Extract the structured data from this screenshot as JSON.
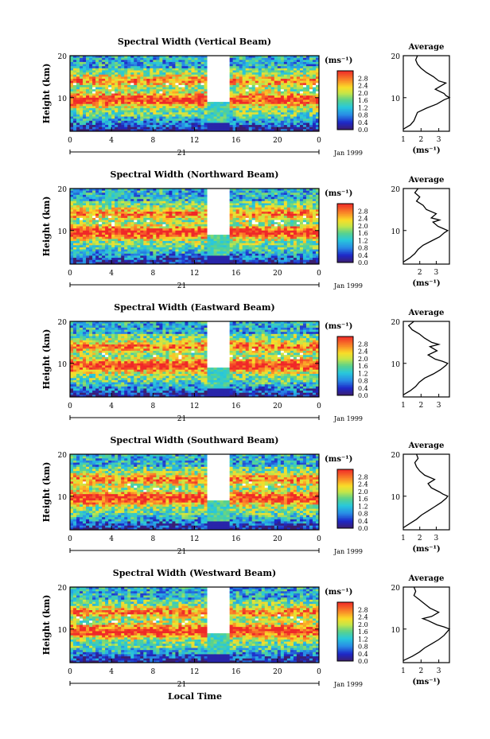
{
  "figure": {
    "xlabel_bottom": "Local Time",
    "date_day": "21",
    "date_label": "Jan 1999"
  },
  "chart_data": [
    {
      "type": "heatmap",
      "title": "Spectral Width (Vertical Beam)",
      "ylabel": "Height (km)",
      "x_ticks": [
        "0",
        "4",
        "8",
        "12",
        "16",
        "20",
        "0"
      ],
      "y_ticks": [
        "10",
        "20"
      ],
      "xlim": [
        0,
        24
      ],
      "ylim": [
        2,
        20
      ],
      "colorbar": {
        "unit": "(ms⁻¹)",
        "ticks": [
          "2.8",
          "2.4",
          "2.0",
          "1.6",
          "1.2",
          "0.8",
          "0.4",
          "0.0"
        ],
        "range": [
          0.0,
          3.2
        ]
      },
      "average_profile": {
        "title": "Average",
        "xlabel": "(ms⁻¹)",
        "x_ticks": [
          "1",
          "2",
          "3"
        ],
        "xlim": [
          1,
          3.6
        ],
        "ylim": [
          2,
          20
        ],
        "height_km": [
          2.5,
          3.5,
          4.5,
          5.5,
          6.5,
          7.5,
          8.5,
          9.5,
          10.0,
          10.5,
          11.0,
          12.0,
          13.0,
          13.5,
          14.0,
          15.0,
          16.0,
          17.0,
          18.0,
          19.0,
          20.0
        ],
        "width": [
          1.0,
          1.4,
          1.6,
          1.7,
          1.8,
          2.3,
          2.9,
          3.3,
          3.6,
          3.4,
          3.3,
          2.8,
          3.2,
          3.4,
          3.0,
          2.7,
          2.3,
          2.0,
          1.8,
          1.7,
          1.8
        ]
      }
    },
    {
      "type": "heatmap",
      "title": "Spectral Width (Northward Beam)",
      "ylabel": "Height (km)",
      "x_ticks": [
        "0",
        "4",
        "8",
        "12",
        "16",
        "20",
        "0"
      ],
      "y_ticks": [
        "10",
        "20"
      ],
      "xlim": [
        0,
        24
      ],
      "ylim": [
        2,
        20
      ],
      "colorbar": {
        "unit": "(ms⁻¹)",
        "ticks": [
          "2.8",
          "2.4",
          "2.0",
          "1.6",
          "1.2",
          "0.8",
          "0.4",
          "0.0"
        ],
        "range": [
          0.0,
          3.2
        ]
      },
      "average_profile": {
        "title": "Average",
        "xlabel": "(ms⁻¹)",
        "x_ticks": [
          "2",
          "3"
        ],
        "xlim": [
          1,
          3.8
        ],
        "ylim": [
          2,
          20
        ],
        "height_km": [
          2.5,
          3.5,
          4.5,
          5.5,
          6.5,
          7.5,
          8.5,
          9.5,
          10.0,
          10.5,
          11.0,
          12.0,
          12.5,
          13.0,
          14.0,
          15.0,
          16.0,
          17.0,
          18.0,
          19.0,
          20.0
        ],
        "width": [
          1.0,
          1.4,
          1.7,
          1.9,
          2.2,
          2.7,
          3.2,
          3.5,
          3.7,
          3.4,
          3.1,
          2.8,
          3.2,
          2.7,
          3.0,
          2.4,
          2.2,
          1.8,
          2.0,
          1.7,
          1.9
        ]
      }
    },
    {
      "type": "heatmap",
      "title": "Spectral Width (Eastward Beam)",
      "ylabel": "Height (km)",
      "x_ticks": [
        "0",
        "4",
        "8",
        "12",
        "16",
        "20",
        "0"
      ],
      "y_ticks": [
        "10",
        "20"
      ],
      "xlim": [
        0,
        24
      ],
      "ylim": [
        2,
        20
      ],
      "colorbar": {
        "unit": "(ms⁻¹)",
        "ticks": [
          "2.8",
          "2.4",
          "2.0",
          "1.6",
          "1.2",
          "0.8",
          "0.4",
          "0.0"
        ],
        "range": [
          0.0,
          3.2
        ]
      },
      "average_profile": {
        "title": "Average",
        "xlabel": "",
        "x_ticks": [
          "1",
          "2",
          "3"
        ],
        "xlim": [
          1,
          3.6
        ],
        "ylim": [
          2,
          20
        ],
        "height_km": [
          2.5,
          3.5,
          4.5,
          5.5,
          6.5,
          7.5,
          8.5,
          9.5,
          10.0,
          10.5,
          11.0,
          12.0,
          13.0,
          14.0,
          14.5,
          15.0,
          16.0,
          17.0,
          18.0,
          19.0,
          20.0
        ],
        "width": [
          1.0,
          1.4,
          1.7,
          1.9,
          2.2,
          2.7,
          3.1,
          3.4,
          3.5,
          3.2,
          2.8,
          2.4,
          2.9,
          2.5,
          3.0,
          2.6,
          2.2,
          1.9,
          1.5,
          1.3,
          1.6
        ]
      }
    },
    {
      "type": "heatmap",
      "title": "Spectral Width (Southward Beam)",
      "ylabel": "Height (km)",
      "x_ticks": [
        "0",
        "4",
        "8",
        "12",
        "16",
        "20",
        "0"
      ],
      "y_ticks": [
        "10",
        "20"
      ],
      "xlim": [
        0,
        24
      ],
      "ylim": [
        2,
        20
      ],
      "colorbar": {
        "unit": "(ms⁻¹)",
        "ticks": [
          "2.8",
          "2.4",
          "2.0",
          "1.6",
          "1.2",
          "0.8",
          "0.4",
          "0.0"
        ],
        "range": [
          0.0,
          3.2
        ]
      },
      "average_profile": {
        "title": "Average",
        "xlabel": "(ms⁻¹)",
        "x_ticks": [
          "1",
          "2",
          "3"
        ],
        "xlim": [
          1,
          3.8
        ],
        "ylim": [
          2,
          20
        ],
        "height_km": [
          2.5,
          3.5,
          4.5,
          5.5,
          6.5,
          7.5,
          8.5,
          9.5,
          10.0,
          10.5,
          11.0,
          12.0,
          13.0,
          14.0,
          15.0,
          16.0,
          17.0,
          18.0,
          19.0,
          20.0
        ],
        "width": [
          1.0,
          1.4,
          1.8,
          2.1,
          2.5,
          2.9,
          3.3,
          3.6,
          3.7,
          3.4,
          3.2,
          2.7,
          2.5,
          2.9,
          2.3,
          2.0,
          1.8,
          1.7,
          1.9,
          1.8
        ]
      }
    },
    {
      "type": "heatmap",
      "title": "Spectral Width (Westward Beam)",
      "ylabel": "Height (km)",
      "x_ticks": [
        "0",
        "4",
        "8",
        "12",
        "16",
        "20",
        "0"
      ],
      "y_ticks": [
        "10",
        "20"
      ],
      "xlim": [
        0,
        24
      ],
      "ylim": [
        2,
        20
      ],
      "colorbar": {
        "unit": "(ms⁻¹)",
        "ticks": [
          "2.8",
          "2.4",
          "2.0",
          "1.6",
          "1.2",
          "0.8",
          "0.4",
          "0.0"
        ],
        "range": [
          0.0,
          3.2
        ]
      },
      "average_profile": {
        "title": "Average",
        "xlabel": "(ms⁻¹)",
        "x_ticks": [
          "1",
          "2",
          "3"
        ],
        "xlim": [
          1,
          3.6
        ],
        "ylim": [
          2,
          20
        ],
        "height_km": [
          2.5,
          3.5,
          4.5,
          5.5,
          6.5,
          7.5,
          8.5,
          9.5,
          10.0,
          10.5,
          11.0,
          12.0,
          12.5,
          13.0,
          14.0,
          15.0,
          16.0,
          17.0,
          18.0,
          19.0,
          20.0
        ],
        "width": [
          1.0,
          1.5,
          1.9,
          2.2,
          2.6,
          3.0,
          3.3,
          3.5,
          3.6,
          3.3,
          2.9,
          2.4,
          2.1,
          2.6,
          3.0,
          2.5,
          2.2,
          1.9,
          1.6,
          1.7,
          1.6
        ]
      }
    }
  ]
}
